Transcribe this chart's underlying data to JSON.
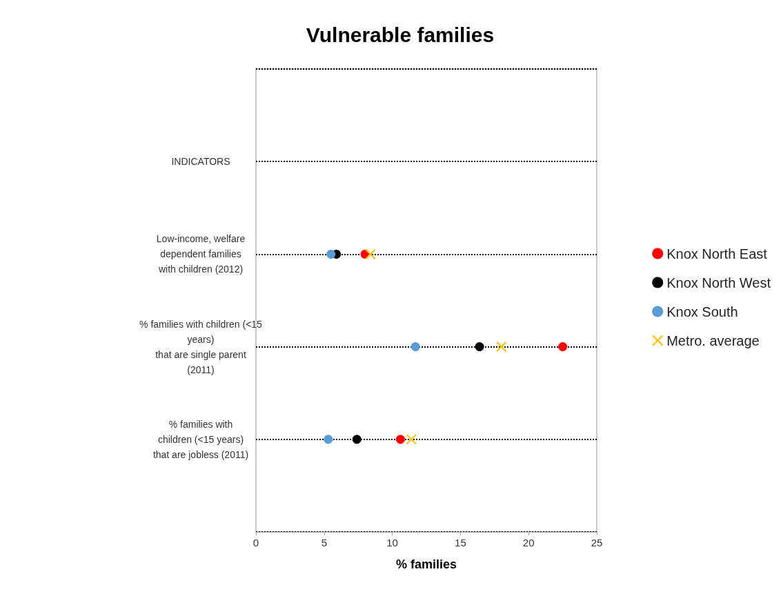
{
  "chart_data": {
    "type": "scatter",
    "title": "Vulnerable families",
    "xlabel": "% families",
    "orientation": "horizontal",
    "categories": [
      null,
      "INDICATORS",
      "Low-income, welfare\ndependent families\nwith children (2012)",
      "% families with children (<15\nyears)\nthat are single parent\n(2011)",
      "% families with\nchildren (<15 years)\nthat are jobless (2011)",
      null
    ],
    "series": [
      {
        "name": "Knox North East",
        "color": "#ff0000",
        "marker": "circle",
        "values": [
          null,
          null,
          8.0,
          22.5,
          10.6,
          null
        ]
      },
      {
        "name": "Knox North West",
        "color": "#000000",
        "marker": "circle",
        "values": [
          null,
          null,
          5.9,
          16.4,
          7.4,
          null
        ]
      },
      {
        "name": "Knox South",
        "color": "#5b9bd5",
        "marker": "circle",
        "values": [
          null,
          null,
          5.5,
          11.7,
          5.3,
          null
        ]
      },
      {
        "name": "Metro. average",
        "color": "#ffc000",
        "marker": "cross",
        "values": [
          null,
          null,
          8.4,
          18.0,
          11.4,
          null
        ]
      }
    ],
    "xlim": [
      0,
      25
    ],
    "xticks": [
      0,
      5,
      10,
      15,
      20,
      25
    ],
    "grid": "y",
    "legend": "right"
  }
}
